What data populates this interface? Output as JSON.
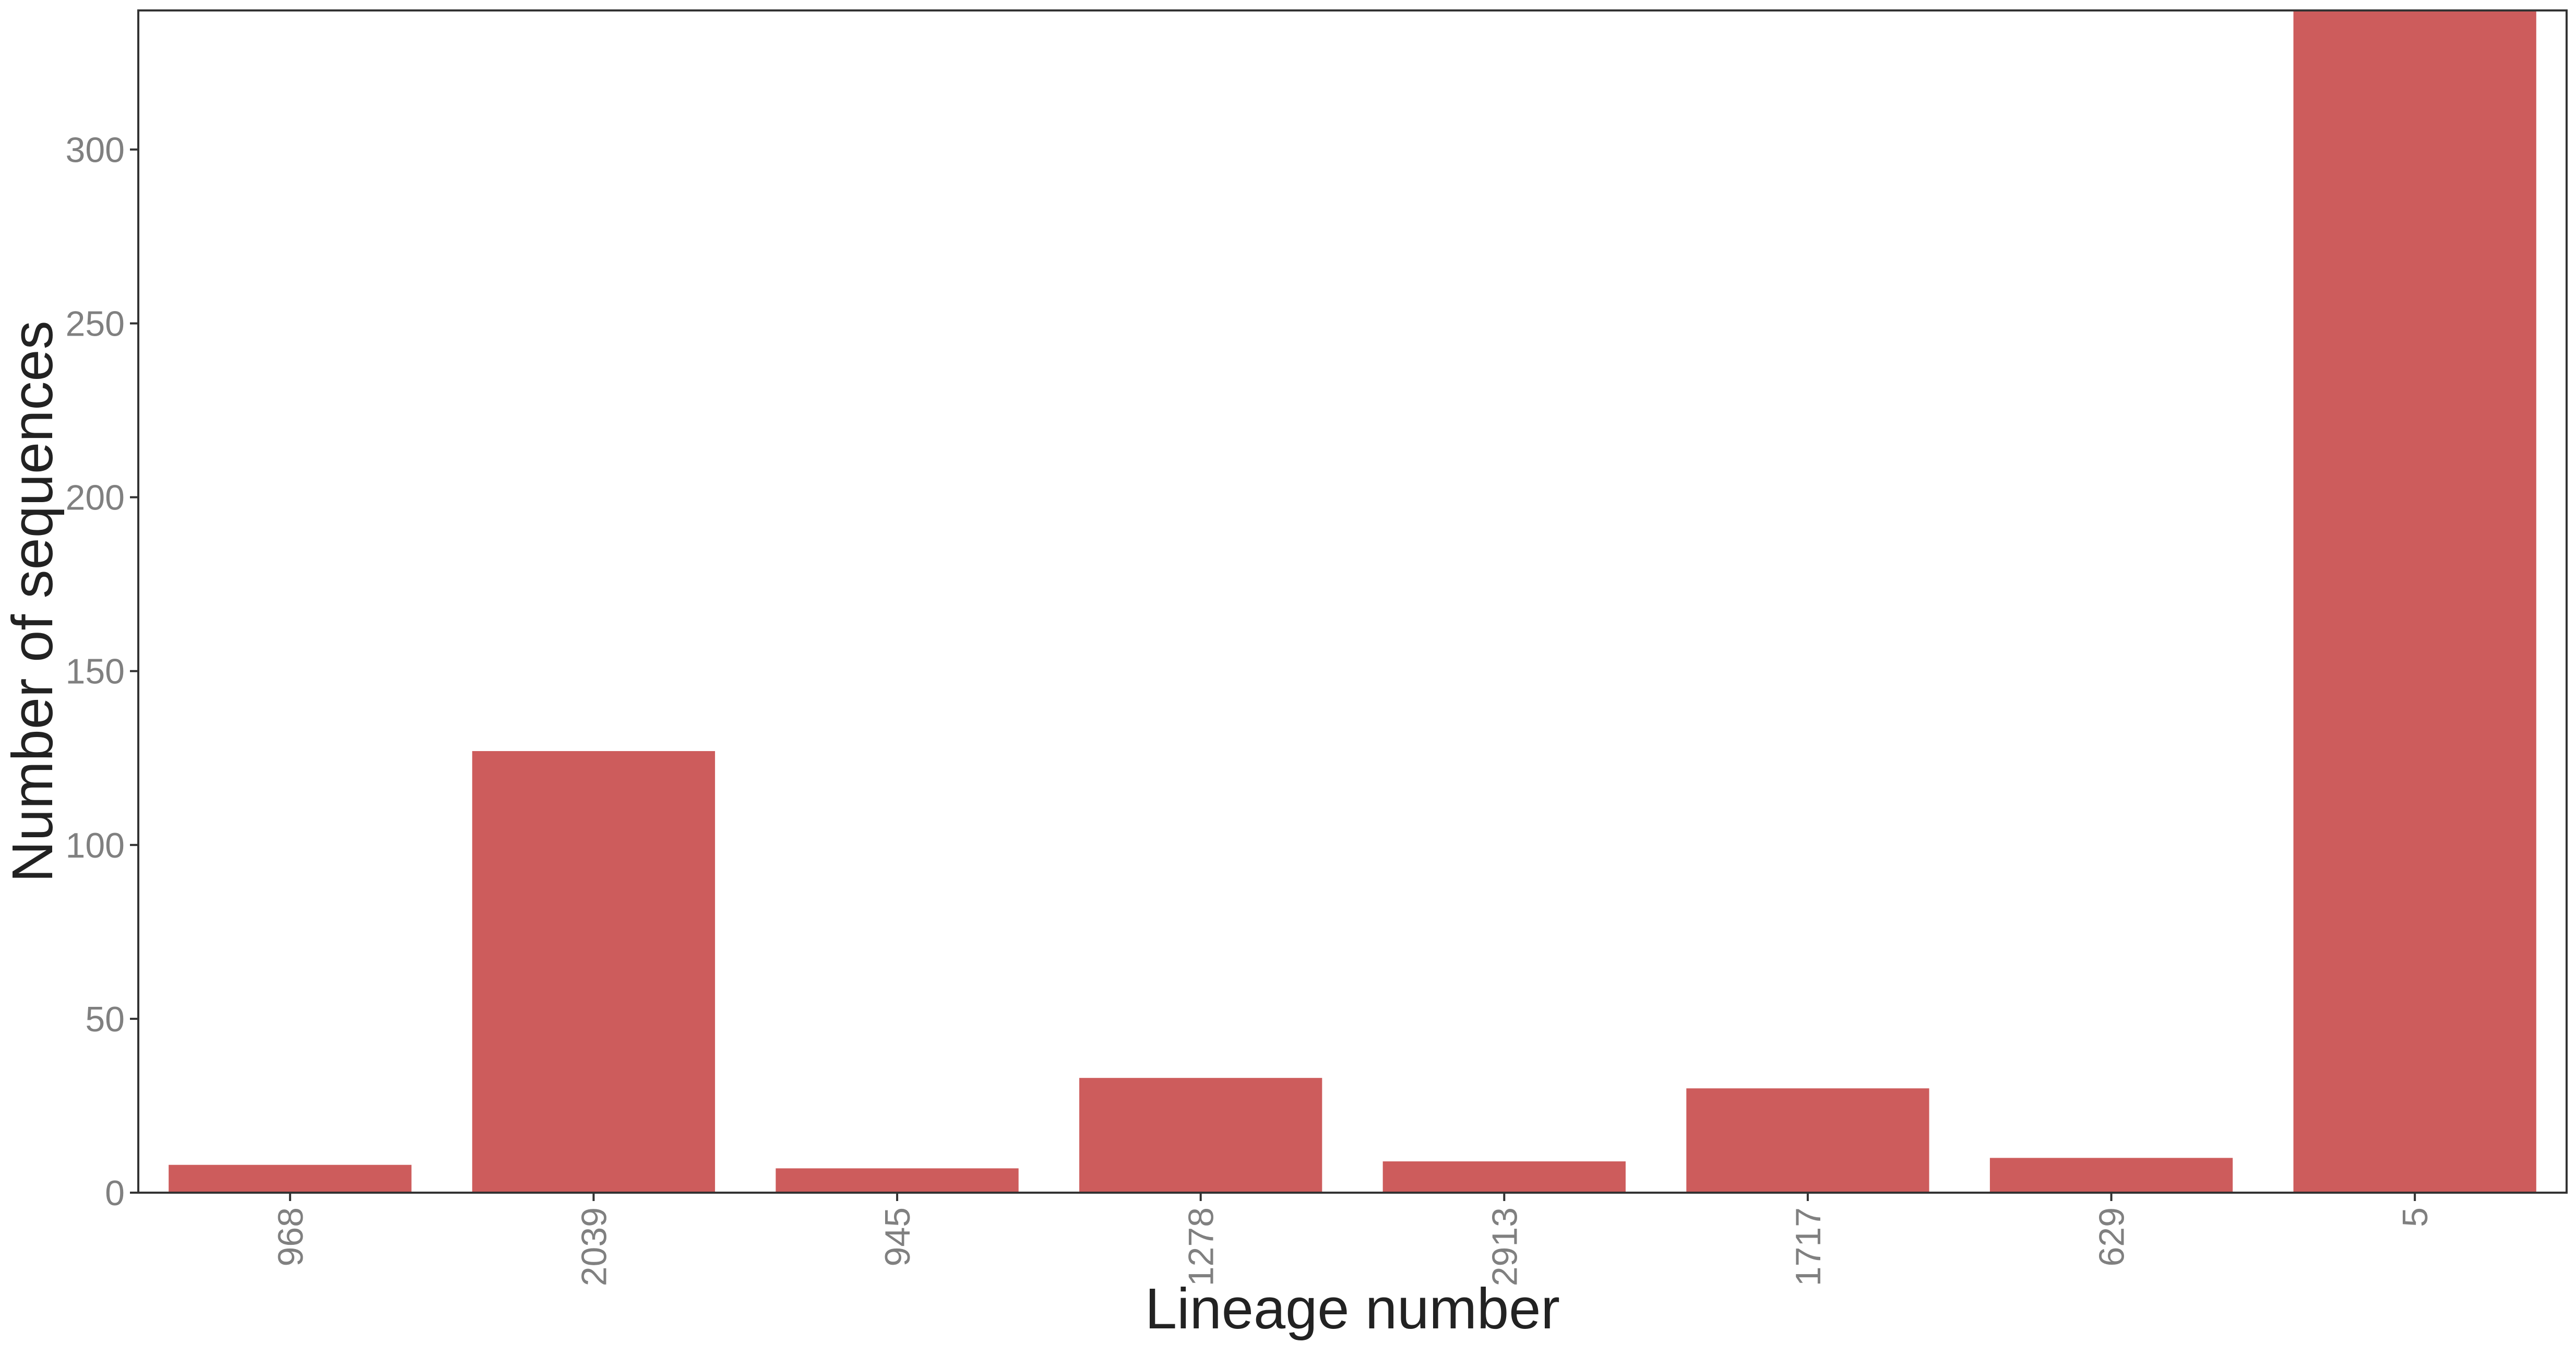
{
  "chart_data": {
    "type": "bar",
    "title": "",
    "xlabel": "Lineage number",
    "ylabel": "Number of sequences",
    "categories": [
      "968",
      "2039",
      "945",
      "1278",
      "2913",
      "1717",
      "629",
      "5"
    ],
    "values": [
      8,
      127,
      7,
      33,
      9,
      30,
      10,
      340
    ],
    "ylim": [
      0,
      340
    ],
    "yticks": [
      0,
      50,
      100,
      150,
      200,
      250,
      300
    ],
    "ytick_labels": [
      "0",
      "50",
      "100",
      "150",
      "200",
      "250",
      "300"
    ],
    "xtick_rotation": "vertical",
    "grid": false,
    "legend": "none",
    "bar_color": "#cd5c5c",
    "axis_color": "#333333",
    "tick_label_color": "#808080"
  }
}
